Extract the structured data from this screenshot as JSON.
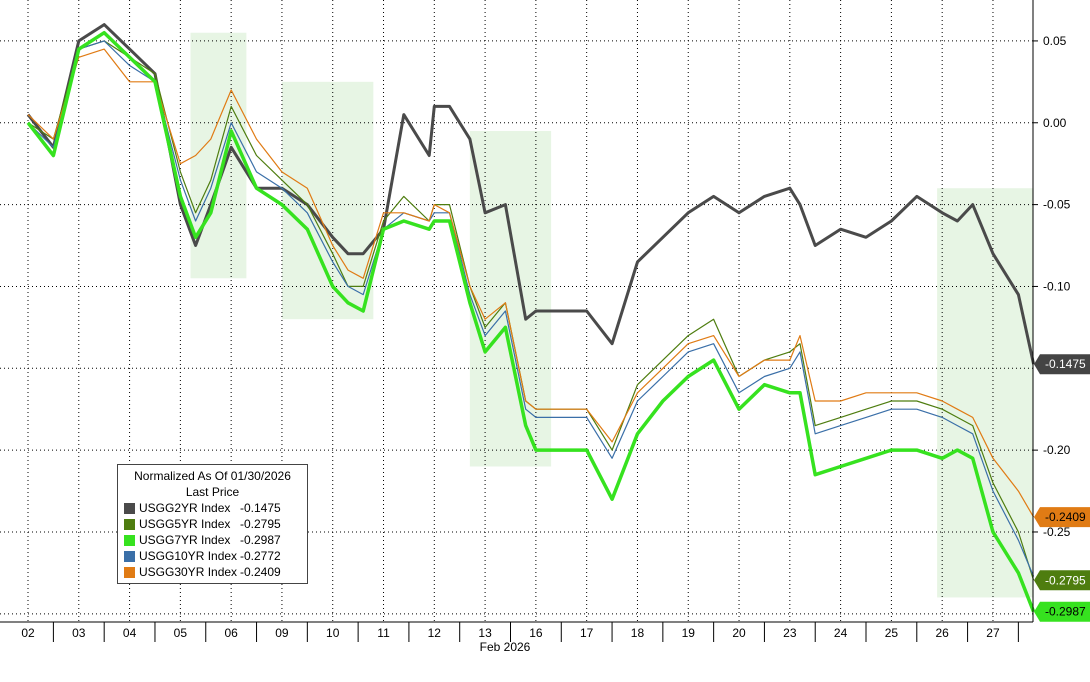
{
  "chart_data": {
    "type": "line",
    "title": "",
    "xlabel": "Feb 2026",
    "ylabel": "",
    "ylim": [
      -0.305,
      0.075
    ],
    "y_ticks": [
      0.05,
      0.0,
      -0.05,
      -0.1,
      -0.2,
      -0.25
    ],
    "y_tick_labels": [
      "0.05",
      "0.00",
      "-0.05",
      "-0.10",
      "-0.20",
      "-0.25"
    ],
    "x_tick_labels": [
      "02",
      "03",
      "04",
      "05",
      "06",
      "09",
      "10",
      "11",
      "12",
      "13",
      "16",
      "17",
      "18",
      "19",
      "20",
      "23",
      "24",
      "25",
      "26",
      "27"
    ],
    "x": [
      0.0,
      0.5,
      1.0,
      1.5,
      2.0,
      2.5,
      3.0,
      3.3,
      3.6,
      4.0,
      4.5,
      5.0,
      5.5,
      6.0,
      6.3,
      6.6,
      7.0,
      7.4,
      7.9,
      8.0,
      8.3,
      8.7,
      9.0,
      9.4,
      9.8,
      10.0,
      10.2,
      10.5,
      11.0,
      11.5,
      12.0,
      12.5,
      13.0,
      13.5,
      14.0,
      14.5,
      15.0,
      15.2,
      15.5,
      16.0,
      16.5,
      17.0,
      17.5,
      18.0,
      18.3,
      18.6,
      19.0,
      19.5,
      19.8
    ],
    "series": [
      {
        "name": "USGG2YR Index",
        "color": "#4a4a4a",
        "width": 3,
        "last": "-0.1475",
        "values": [
          0.005,
          -0.015,
          0.05,
          0.06,
          0.045,
          0.03,
          -0.05,
          -0.075,
          -0.05,
          -0.015,
          -0.04,
          -0.04,
          -0.05,
          -0.07,
          -0.08,
          -0.08,
          -0.065,
          0.005,
          -0.02,
          0.01,
          0.01,
          -0.01,
          -0.055,
          -0.05,
          -0.12,
          -0.115,
          -0.115,
          -0.115,
          -0.115,
          -0.135,
          -0.085,
          -0.07,
          -0.055,
          -0.045,
          -0.055,
          -0.045,
          -0.04,
          -0.05,
          -0.075,
          -0.065,
          -0.07,
          -0.06,
          -0.045,
          -0.055,
          -0.06,
          -0.05,
          -0.08,
          -0.105,
          -0.1475
        ]
      },
      {
        "name": "USGG5YR Index",
        "color": "#4e7d0f",
        "width": 1.2,
        "last": "-0.2795",
        "values": [
          0.0,
          -0.01,
          0.045,
          0.05,
          0.04,
          0.03,
          -0.03,
          -0.055,
          -0.035,
          0.01,
          -0.02,
          -0.035,
          -0.05,
          -0.08,
          -0.1,
          -0.1,
          -0.06,
          -0.045,
          -0.06,
          -0.05,
          -0.05,
          -0.1,
          -0.125,
          -0.11,
          -0.17,
          -0.175,
          -0.175,
          -0.175,
          -0.175,
          -0.2,
          -0.16,
          -0.145,
          -0.13,
          -0.12,
          -0.155,
          -0.145,
          -0.14,
          -0.135,
          -0.185,
          -0.18,
          -0.175,
          -0.17,
          -0.17,
          -0.175,
          -0.18,
          -0.185,
          -0.22,
          -0.25,
          -0.2795
        ]
      },
      {
        "name": "USGG10YR Index",
        "color": "#3a6fa8",
        "width": 1.2,
        "last": "-0.2772",
        "values": [
          0.0,
          -0.015,
          0.045,
          0.05,
          0.035,
          0.025,
          -0.035,
          -0.06,
          -0.04,
          0.0,
          -0.03,
          -0.04,
          -0.055,
          -0.085,
          -0.1,
          -0.105,
          -0.065,
          -0.055,
          -0.06,
          -0.055,
          -0.055,
          -0.105,
          -0.13,
          -0.115,
          -0.175,
          -0.18,
          -0.18,
          -0.18,
          -0.18,
          -0.205,
          -0.17,
          -0.155,
          -0.14,
          -0.135,
          -0.165,
          -0.155,
          -0.15,
          -0.14,
          -0.19,
          -0.185,
          -0.18,
          -0.175,
          -0.175,
          -0.18,
          -0.185,
          -0.19,
          -0.225,
          -0.255,
          -0.2772
        ]
      },
      {
        "name": "USGG30YR Index",
        "color": "#e07b14",
        "width": 1.2,
        "last": "-0.2409",
        "values": [
          0.005,
          -0.01,
          0.04,
          0.045,
          0.025,
          0.025,
          -0.025,
          -0.02,
          -0.01,
          0.02,
          -0.01,
          -0.03,
          -0.04,
          -0.075,
          -0.09,
          -0.095,
          -0.055,
          -0.055,
          -0.06,
          -0.05,
          -0.055,
          -0.1,
          -0.12,
          -0.11,
          -0.17,
          -0.175,
          -0.175,
          -0.175,
          -0.175,
          -0.195,
          -0.165,
          -0.15,
          -0.135,
          -0.13,
          -0.155,
          -0.145,
          -0.145,
          -0.13,
          -0.17,
          -0.17,
          -0.165,
          -0.165,
          -0.165,
          -0.17,
          -0.175,
          -0.18,
          -0.205,
          -0.225,
          -0.2409
        ]
      },
      {
        "name": "USGG7YR Index",
        "color": "#36e21f",
        "width": 3.5,
        "last": "-0.2987",
        "values": [
          0.0,
          -0.02,
          0.045,
          0.055,
          0.04,
          0.025,
          -0.045,
          -0.07,
          -0.055,
          -0.005,
          -0.04,
          -0.05,
          -0.065,
          -0.1,
          -0.11,
          -0.115,
          -0.065,
          -0.06,
          -0.065,
          -0.06,
          -0.06,
          -0.11,
          -0.14,
          -0.125,
          -0.185,
          -0.2,
          -0.2,
          -0.2,
          -0.2,
          -0.23,
          -0.19,
          -0.17,
          -0.155,
          -0.145,
          -0.175,
          -0.16,
          -0.165,
          -0.165,
          -0.215,
          -0.21,
          -0.205,
          -0.2,
          -0.2,
          -0.205,
          -0.2,
          -0.205,
          -0.25,
          -0.275,
          -0.2987
        ]
      }
    ],
    "shaded_ranges": [
      [
        3.2,
        4.3
      ],
      [
        5.0,
        6.8
      ],
      [
        8.7,
        10.3
      ],
      [
        17.9,
        19.8
      ]
    ],
    "grid": true,
    "legend_placement": "bottom-left",
    "legend": {
      "title": "Normalized As Of 01/30/2026",
      "subtitle": "Last Price",
      "entries": [
        {
          "name": "USGG2YR Index",
          "value": "-0.1475",
          "color": "#4a4a4a"
        },
        {
          "name": "USGG5YR Index",
          "value": "-0.2795",
          "color": "#4e7d0f"
        },
        {
          "name": "USGG7YR Index",
          "value": "-0.2987",
          "color": "#36e21f"
        },
        {
          "name": "USGG10YR Index",
          "value": "-0.2772",
          "color": "#3a6fa8"
        },
        {
          "name": "USGG30YR Index",
          "value": "-0.2409",
          "color": "#e07b14"
        }
      ]
    },
    "last_value_labels": [
      {
        "value": "-0.1475",
        "color": "#444444",
        "text_color": "#ffffff"
      },
      {
        "value": "-0.2409",
        "color": "#e07b14",
        "text_color": "#000000"
      },
      {
        "value": "-0.2795",
        "color": "#4e7d0f",
        "text_color": "#ffffff"
      },
      {
        "value": "-0.2987",
        "color": "#36e21f",
        "text_color": "#000000"
      }
    ]
  }
}
